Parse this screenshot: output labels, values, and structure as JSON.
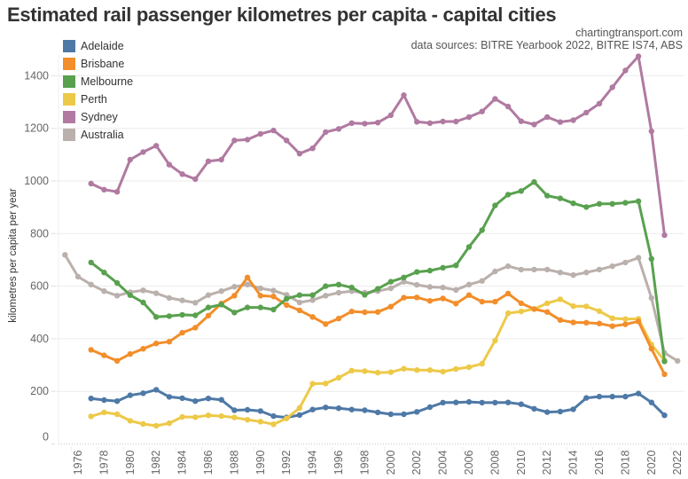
{
  "header": {
    "title": "Estimated rail passenger kilometres per capita - capital cities",
    "credit": "chartingtransport.com",
    "sources": "data sources: BITRE Yearbook 2022, BITRE IS74, ABS"
  },
  "chart_data": {
    "type": "line",
    "title": "Estimated rail passenger kilometres per capita - capital cities",
    "xlabel": "",
    "ylabel": "kilometres per capita per year",
    "ylim": [
      0,
      1480
    ],
    "xlim": [
      1975,
      2022.5
    ],
    "yticks": [
      0,
      200,
      400,
      600,
      800,
      1000,
      1200,
      1400
    ],
    "xticks": [
      1976,
      1978,
      1980,
      1982,
      1984,
      1986,
      1988,
      1990,
      1992,
      1994,
      1996,
      1998,
      2000,
      2002,
      2004,
      2006,
      2008,
      2010,
      2012,
      2014,
      2016,
      2018,
      2020,
      2022
    ],
    "grid": true,
    "legend_position": "top-left",
    "series": [
      {
        "name": "Adelaide",
        "color": "#4e79a7",
        "x": [
          1977,
          1978,
          1979,
          1980,
          1981,
          1982,
          1983,
          1984,
          1985,
          1986,
          1987,
          1988,
          1989,
          1990,
          1991,
          1992,
          1993,
          1994,
          1995,
          1996,
          1997,
          1998,
          1999,
          2000,
          2001,
          2002,
          2003,
          2004,
          2005,
          2006,
          2007,
          2008,
          2009,
          2010,
          2011,
          2012,
          2013,
          2014,
          2015,
          2016,
          2017,
          2018,
          2019,
          2020,
          2021
        ],
        "values": [
          173,
          167,
          163,
          185,
          193,
          206,
          179,
          174,
          163,
          173,
          168,
          128,
          130,
          125,
          106,
          101,
          110,
          131,
          139,
          136,
          131,
          128,
          120,
          113,
          113,
          122,
          140,
          157,
          158,
          160,
          157,
          157,
          158,
          151,
          134,
          121,
          123,
          132,
          175,
          180,
          180,
          180,
          192,
          158,
          109
        ]
      },
      {
        "name": "Brisbane",
        "color": "#f28e2b",
        "x": [
          1977,
          1978,
          1979,
          1980,
          1981,
          1982,
          1983,
          1984,
          1985,
          1986,
          1987,
          1988,
          1989,
          1990,
          1991,
          1992,
          1993,
          1994,
          1995,
          1996,
          1997,
          1998,
          1999,
          2000,
          2001,
          2002,
          2003,
          2004,
          2005,
          2006,
          2007,
          2008,
          2009,
          2010,
          2011,
          2012,
          2013,
          2014,
          2015,
          2016,
          2017,
          2018,
          2019,
          2020,
          2021
        ],
        "values": [
          358,
          337,
          316,
          342,
          362,
          382,
          389,
          423,
          442,
          488,
          534,
          564,
          633,
          564,
          561,
          528,
          508,
          483,
          456,
          477,
          504,
          501,
          502,
          522,
          556,
          557,
          544,
          553,
          534,
          566,
          541,
          541,
          572,
          535,
          513,
          502,
          471,
          462,
          461,
          458,
          448,
          455,
          466,
          362,
          265
        ]
      },
      {
        "name": "Melbourne",
        "color": "#59a14f",
        "x": [
          1977,
          1978,
          1979,
          1980,
          1981,
          1982,
          1983,
          1984,
          1985,
          1986,
          1987,
          1988,
          1989,
          1990,
          1991,
          1992,
          1993,
          1994,
          1995,
          1996,
          1997,
          1998,
          1999,
          2000,
          2001,
          2002,
          2003,
          2004,
          2005,
          2006,
          2007,
          2008,
          2009,
          2010,
          2011,
          2012,
          2013,
          2014,
          2015,
          2016,
          2017,
          2018,
          2019,
          2020,
          2021
        ],
        "values": [
          690,
          652,
          612,
          566,
          538,
          483,
          486,
          491,
          489,
          519,
          530,
          500,
          519,
          519,
          511,
          552,
          566,
          566,
          600,
          606,
          595,
          567,
          590,
          617,
          633,
          654,
          659,
          670,
          679,
          749,
          813,
          907,
          948,
          962,
          996,
          944,
          934,
          915,
          901,
          913,
          913,
          917,
          923,
          704,
          314
        ]
      },
      {
        "name": "Perth",
        "color": "#edc948",
        "x": [
          1977,
          1978,
          1979,
          1980,
          1981,
          1982,
          1983,
          1984,
          1985,
          1986,
          1987,
          1988,
          1989,
          1990,
          1991,
          1992,
          1993,
          1994,
          1995,
          1996,
          1997,
          1998,
          1999,
          2000,
          2001,
          2002,
          2003,
          2004,
          2005,
          2006,
          2007,
          2008,
          2009,
          2010,
          2011,
          2012,
          2013,
          2014,
          2015,
          2016,
          2017,
          2018,
          2019,
          2020,
          2021
        ],
        "values": [
          105,
          120,
          113,
          88,
          76,
          69,
          79,
          103,
          102,
          109,
          106,
          101,
          92,
          85,
          75,
          97,
          137,
          229,
          230,
          252,
          279,
          277,
          271,
          273,
          286,
          281,
          281,
          275,
          285,
          292,
          305,
          393,
          497,
          504,
          513,
          535,
          550,
          524,
          523,
          505,
          478,
          475,
          476,
          378,
          317
        ]
      },
      {
        "name": "Sydney",
        "color": "#b07aa1",
        "x": [
          1977,
          1978,
          1979,
          1980,
          1981,
          1982,
          1983,
          1984,
          1985,
          1986,
          1987,
          1988,
          1989,
          1990,
          1991,
          1992,
          1993,
          1994,
          1995,
          1996,
          1997,
          1998,
          1999,
          2000,
          2001,
          2002,
          2003,
          2004,
          2005,
          2006,
          2007,
          2008,
          2009,
          2010,
          2011,
          2012,
          2013,
          2014,
          2015,
          2016,
          2017,
          2018,
          2019,
          2020,
          2021
        ],
        "values": [
          990,
          967,
          959,
          1081,
          1110,
          1134,
          1062,
          1026,
          1007,
          1075,
          1081,
          1154,
          1157,
          1179,
          1192,
          1154,
          1104,
          1124,
          1186,
          1198,
          1220,
          1218,
          1222,
          1250,
          1326,
          1225,
          1220,
          1226,
          1226,
          1243,
          1264,
          1312,
          1283,
          1227,
          1215,
          1243,
          1224,
          1231,
          1260,
          1294,
          1356,
          1420,
          1474,
          1189,
          794
        ]
      },
      {
        "name": "Australia",
        "color": "#bab0ac",
        "x": [
          1975,
          1976,
          1977,
          1978,
          1979,
          1980,
          1981,
          1982,
          1983,
          1984,
          1985,
          1986,
          1987,
          1988,
          1989,
          1990,
          1991,
          1992,
          1993,
          1994,
          1995,
          1996,
          1997,
          1998,
          1999,
          2000,
          2001,
          2002,
          2003,
          2004,
          2005,
          2006,
          2007,
          2008,
          2009,
          2010,
          2011,
          2012,
          2013,
          2014,
          2015,
          2016,
          2017,
          2018,
          2019,
          2020,
          2021,
          2022
        ],
        "values": [
          719,
          636,
          606,
          581,
          564,
          577,
          584,
          573,
          555,
          546,
          537,
          566,
          581,
          598,
          606,
          592,
          583,
          567,
          538,
          547,
          564,
          575,
          581,
          575,
          581,
          592,
          617,
          605,
          597,
          595,
          586,
          606,
          620,
          656,
          676,
          663,
          663,
          663,
          652,
          642,
          652,
          663,
          676,
          690,
          708,
          555,
          346,
          316
        ]
      }
    ]
  }
}
